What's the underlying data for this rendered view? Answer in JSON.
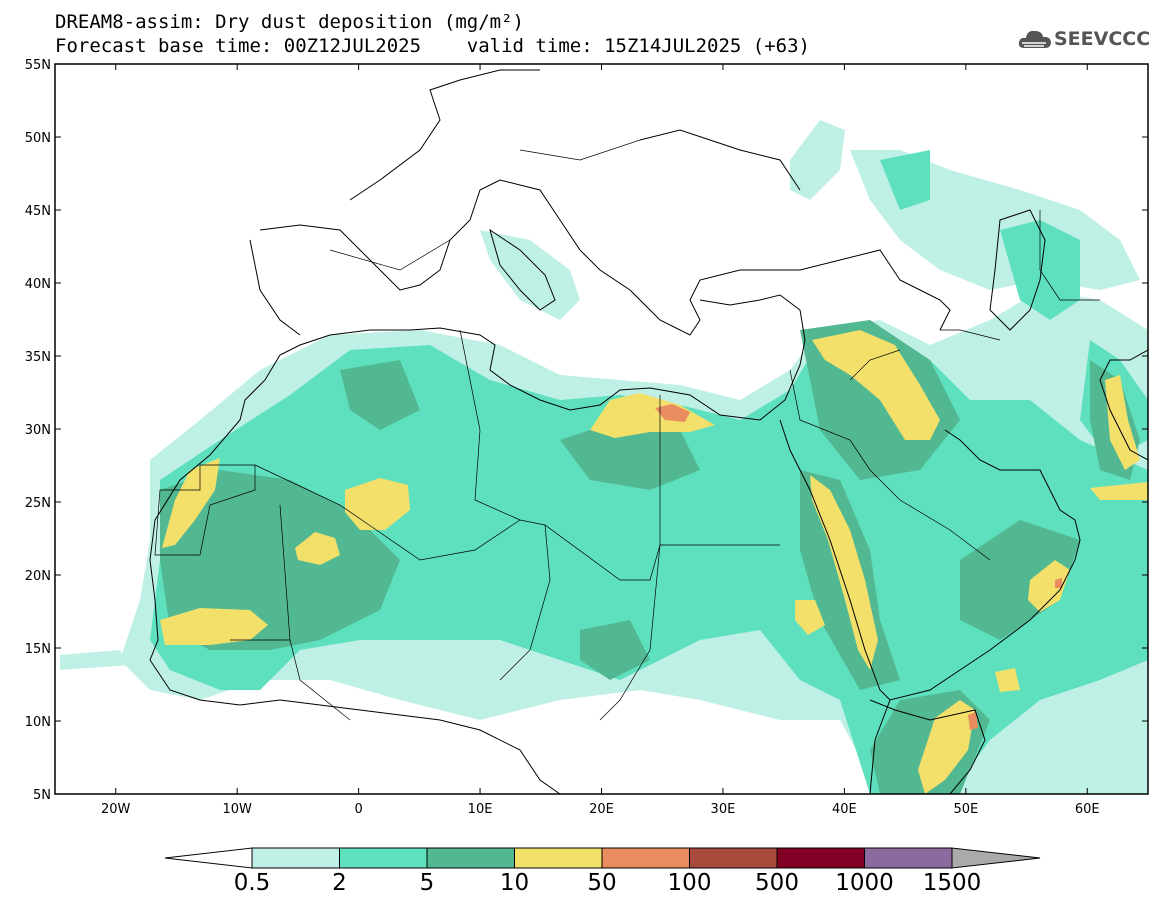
{
  "header": {
    "title_line1": "DREAM8-assim: Dry dust deposition (mg/m²)",
    "title_line2": "Forecast base time: 00Z12JUL2025    valid time: 15Z14JUL2025 (+63)"
  },
  "logo": {
    "text": "SEEVCCC",
    "icon": "cloud-logo-icon",
    "color": "#555555"
  },
  "map": {
    "lon_range": [
      -25,
      65
    ],
    "lat_range": [
      5,
      55
    ],
    "lat_labels": [
      "55N",
      "50N",
      "45N",
      "40N",
      "35N",
      "30N",
      "25N",
      "20N",
      "15N",
      "10N",
      "5N"
    ],
    "lon_labels": [
      "20W",
      "10W",
      "0",
      "10E",
      "20E",
      "30E",
      "40E",
      "50E",
      "60E"
    ]
  },
  "legend": {
    "levels": [
      "0.5",
      "2",
      "5",
      "10",
      "50",
      "100",
      "500",
      "1000",
      "1500"
    ],
    "colors": [
      "#ffffff",
      "#bff0e6",
      "#5ee0bf",
      "#52b891",
      "#f2e06b",
      "#e98d60",
      "#a94b3c",
      "#820026",
      "#8c6aa0",
      "#aaaaaa"
    ]
  }
}
